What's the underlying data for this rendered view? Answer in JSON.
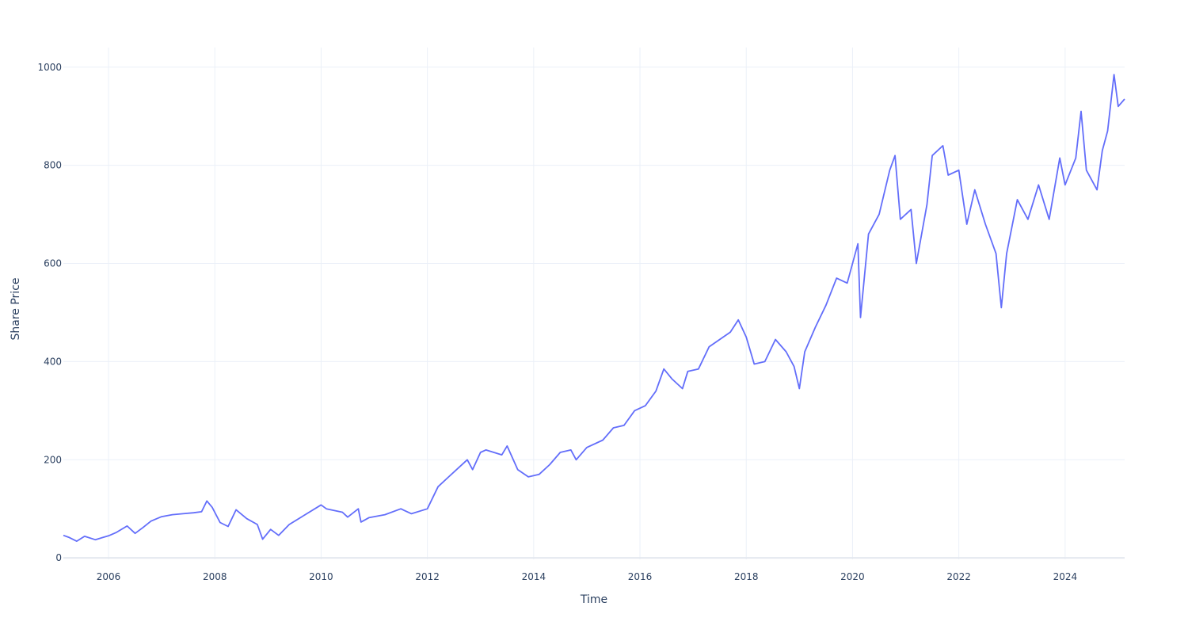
{
  "chart_data": {
    "type": "line",
    "title": "",
    "xlabel": "Time",
    "ylabel": "Share Price",
    "xlim": [
      2005.15,
      2025.12
    ],
    "ylim": [
      -3,
      1040
    ],
    "grid": true,
    "legend": "none",
    "line_color": "#636efa",
    "x_ticks": [
      2006,
      2008,
      2010,
      2012,
      2014,
      2016,
      2018,
      2020,
      2022,
      2024
    ],
    "x_tick_labels": [
      "2006",
      "2008",
      "2010",
      "2012",
      "2014",
      "2016",
      "2018",
      "2020",
      "2022",
      "2024"
    ],
    "y_ticks": [
      0,
      200,
      400,
      600,
      800,
      1000
    ],
    "y_tick_labels": [
      "0",
      "200",
      "400",
      "600",
      "800",
      "1000"
    ],
    "series": [
      {
        "x": [
          2005.15,
          2005.25,
          2005.4,
          2005.55,
          2005.75,
          2006.0,
          2006.15,
          2006.35,
          2006.5,
          2006.65,
          2006.8,
          2007.0,
          2007.2,
          2007.4,
          2007.6,
          2007.75,
          2007.85,
          2007.95,
          2008.1,
          2008.25,
          2008.4,
          2008.6,
          2008.8,
          2008.9,
          2009.05,
          2009.2,
          2009.4,
          2009.7,
          2010.0,
          2010.1,
          2010.4,
          2010.5,
          2010.7,
          2010.75,
          2010.9,
          2011.2,
          2011.5,
          2011.7,
          2012.0,
          2012.2,
          2012.4,
          2012.6,
          2012.75,
          2012.85,
          2013.0,
          2013.1,
          2013.4,
          2013.5,
          2013.7,
          2013.9,
          2014.1,
          2014.3,
          2014.5,
          2014.7,
          2014.8,
          2015.0,
          2015.3,
          2015.5,
          2015.7,
          2015.9,
          2016.1,
          2016.3,
          2016.45,
          2016.6,
          2016.8,
          2016.9,
          2017.1,
          2017.3,
          2017.5,
          2017.7,
          2017.85,
          2018.0,
          2018.15,
          2018.35,
          2018.55,
          2018.75,
          2018.9,
          2019.0,
          2019.1,
          2019.3,
          2019.5,
          2019.7,
          2019.9,
          2020.1,
          2020.15,
          2020.3,
          2020.5,
          2020.7,
          2020.8,
          2020.9,
          2021.1,
          2021.2,
          2021.4,
          2021.5,
          2021.7,
          2021.8,
          2022.0,
          2022.15,
          2022.3,
          2022.5,
          2022.7,
          2022.8,
          2022.9,
          2023.1,
          2023.3,
          2023.5,
          2023.7,
          2023.9,
          2024.0,
          2024.2,
          2024.3,
          2024.4,
          2024.6,
          2024.7,
          2024.8,
          2024.92,
          2025.0,
          2025.12
        ],
        "y": [
          46,
          42,
          34,
          44,
          37,
          45,
          52,
          65,
          50,
          62,
          75,
          84,
          88,
          90,
          92,
          94,
          116,
          103,
          72,
          64,
          98,
          80,
          68,
          38,
          58,
          46,
          68,
          88,
          108,
          100,
          93,
          83,
          100,
          73,
          82,
          88,
          100,
          90,
          100,
          145,
          165,
          185,
          200,
          180,
          215,
          220,
          210,
          228,
          180,
          165,
          170,
          190,
          215,
          220,
          200,
          225,
          240,
          265,
          270,
          300,
          310,
          340,
          385,
          365,
          345,
          380,
          385,
          430,
          445,
          460,
          485,
          450,
          395,
          400,
          445,
          420,
          390,
          345,
          420,
          470,
          515,
          570,
          560,
          640,
          490,
          660,
          700,
          790,
          820,
          690,
          710,
          600,
          720,
          820,
          840,
          780,
          790,
          680,
          750,
          680,
          620,
          510,
          620,
          730,
          690,
          760,
          690,
          815,
          760,
          815,
          910,
          790,
          750,
          830,
          870,
          985,
          920,
          935
        ]
      }
    ]
  }
}
